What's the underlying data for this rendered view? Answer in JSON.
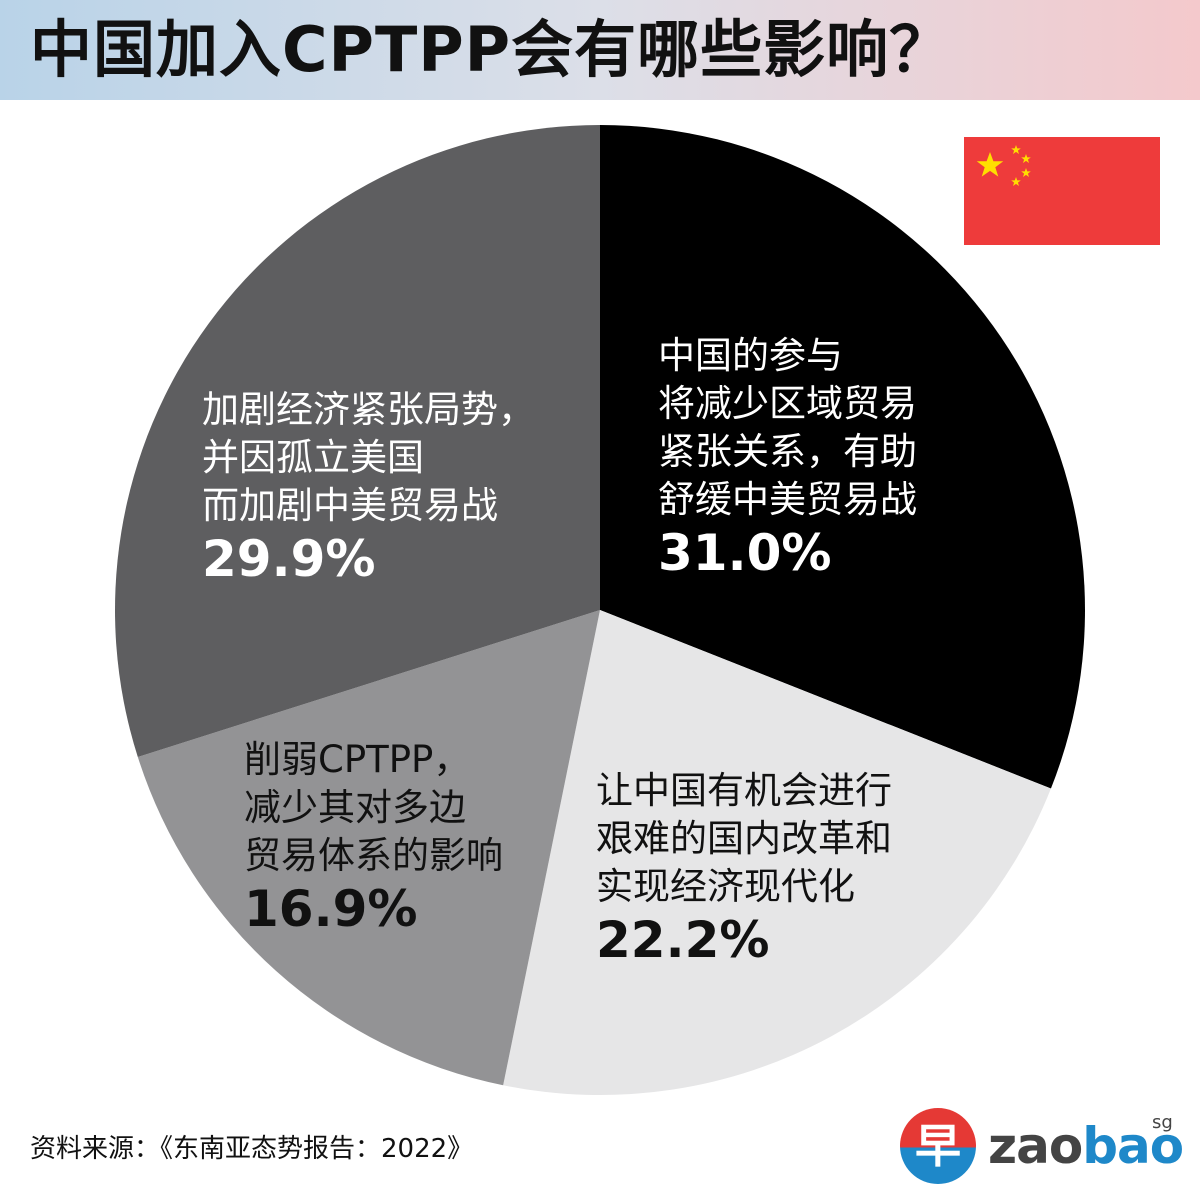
{
  "title": "中国加入CPTPP会有哪些影响？",
  "source": "资料来源：《东南亚态势报告：2022》",
  "logo": {
    "glyph": "早",
    "name_a": "zao",
    "name_b": "bao",
    "suffix": "sg"
  },
  "flag": {
    "name": "china-flag",
    "red": "#EE3B3B",
    "yellow": "#FFDE00"
  },
  "chart_data": {
    "type": "pie",
    "slices": [
      {
        "label_lines": [
          "中国的参与",
          "将减少区域贸易",
          "紧张关系，有助",
          "舒缓中美贸易战"
        ],
        "value": 31.0,
        "value_label": "31.0%",
        "color": "#000000",
        "text_color": "#ffffff"
      },
      {
        "label_lines": [
          "让中国有机会进行",
          "艰难的国内改革和",
          "实现经济现代化"
        ],
        "value": 22.2,
        "value_label": "22.2%",
        "color": "#e6e6e7",
        "text_color": "#111111"
      },
      {
        "label_lines": [
          "削弱CPTPP，",
          "减少其对多边",
          "贸易体系的影响"
        ],
        "value": 16.9,
        "value_label": "16.9%",
        "color": "#939395",
        "text_color": "#111111"
      },
      {
        "label_lines": [
          "加剧经济紧张局势，",
          "并因孤立美国",
          "而加剧中美贸易战"
        ],
        "value": 29.9,
        "value_label": "29.9%",
        "color": "#5e5e60",
        "text_color": "#ffffff"
      }
    ]
  }
}
